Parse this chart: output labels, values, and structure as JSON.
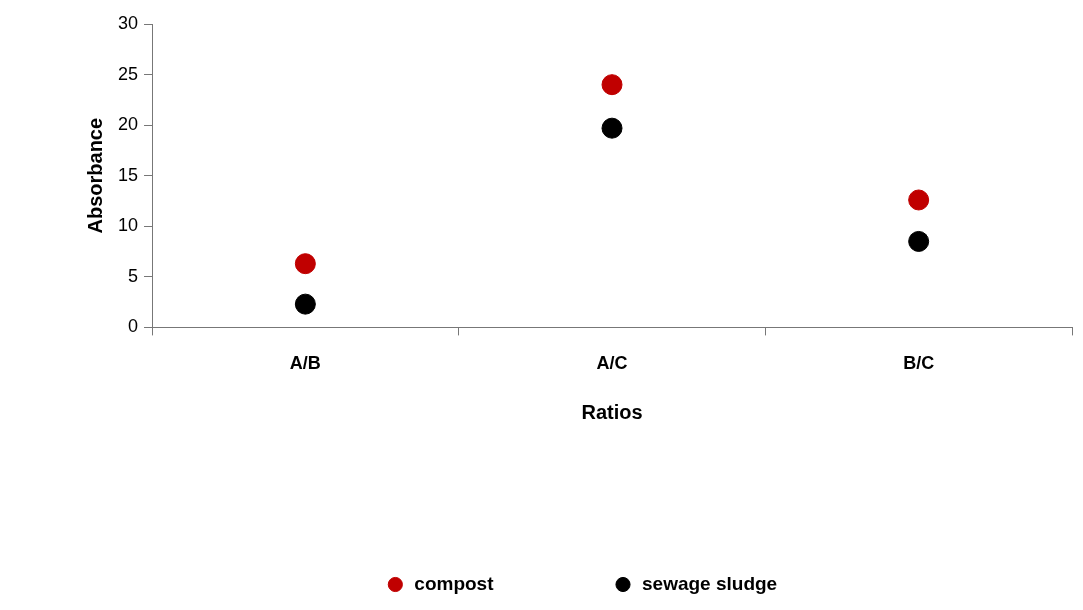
{
  "chart_data": {
    "type": "scatter",
    "xlabel": "Ratios",
    "ylabel": "Absorbance",
    "categories": [
      "A/B",
      "A/C",
      "B/C"
    ],
    "series": [
      {
        "name": "compost",
        "color": "#c00000",
        "values": [
          6.3,
          24.0,
          12.6
        ]
      },
      {
        "name": "sewage sludge",
        "color": "#000000",
        "values": [
          2.3,
          19.7,
          8.5
        ]
      }
    ],
    "ylim": [
      0,
      30
    ],
    "yticks": [
      0,
      5,
      10,
      15,
      20,
      25,
      30
    ],
    "grid": false,
    "legend": "bottom",
    "marker": "circle"
  }
}
